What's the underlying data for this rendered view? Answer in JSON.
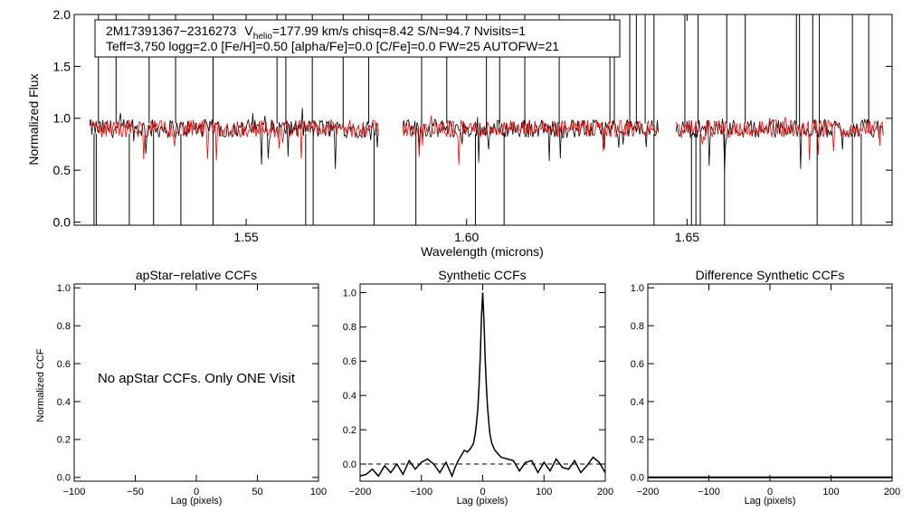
{
  "chart_data": [
    {
      "id": "spectrum",
      "type": "line",
      "title": "",
      "xlabel": "Wavelength (microns)",
      "ylabel": "Normalized Flux",
      "xlim": [
        1.511,
        1.6965
      ],
      "ylim": [
        -0.03,
        2.0
      ],
      "xticks": [
        1.55,
        1.6,
        1.65
      ],
      "xtick_labels": [
        "1.55",
        "1.60",
        "1.65"
      ],
      "yticks": [
        0.0,
        0.5,
        1.0,
        1.5,
        2.0
      ],
      "ytick_labels": [
        "0.0",
        "0.5",
        "1.0",
        "1.5",
        "2.0"
      ],
      "annotation": {
        "line1_id": "2M17391367−2316273",
        "line1_v": "V",
        "line1_v_sub": "helio",
        "line1_rest": "=177.99 km/s  chisq=8.42  S/N=94.7  Nvisits=1",
        "line2": "Teff=3,750 logg=2.0 [Fe/H]=0.50 [alpha/Fe]=0.0 [C/Fe]=0.0 FW=25 AUTOFW=21"
      },
      "chip_ranges": [
        [
          1.5145,
          1.58
        ],
        [
          1.5855,
          1.6435
        ],
        [
          1.6475,
          1.6945
        ]
      ],
      "series": [
        {
          "name": "observed",
          "color": "#000000",
          "level": 0.9,
          "noise": 0.09
        },
        {
          "name": "synthetic",
          "color": "#ff0000",
          "level": 0.9,
          "noise": 0.085
        }
      ],
      "spikes_up": [
        1.5165,
        1.5205,
        1.528,
        1.534,
        1.5425,
        1.557,
        1.559,
        1.565,
        1.572,
        1.5778,
        1.5898,
        1.5955,
        1.6045,
        1.6075,
        1.6132,
        1.621,
        1.6325,
        1.6335,
        1.637,
        1.6385,
        1.6405,
        1.6425,
        1.6495,
        1.6525,
        1.659,
        1.6632,
        1.6748,
        1.6755,
        1.6785,
        1.68,
        1.6875,
        1.6912
      ],
      "spikes_down": [
        1.5155,
        1.516,
        1.5235,
        1.529,
        1.5352,
        1.5425,
        1.5635,
        1.5652,
        1.579,
        1.5885,
        1.602,
        1.6085,
        1.6425,
        1.651,
        1.652,
        1.653,
        1.6585,
        1.6795,
        1.6875,
        1.6895
      ]
    },
    {
      "id": "apstar-ccf",
      "type": "line",
      "title": "apStar−relative CCFs",
      "xlabel": "Lag (pixels)",
      "ylabel": "Normalized CCF",
      "xlim": [
        -100,
        100
      ],
      "ylim": [
        -0.02,
        1.02
      ],
      "xticks": [
        -100,
        -50,
        0,
        50,
        100
      ],
      "xtick_labels": [
        "−100",
        "−50",
        "0",
        "50",
        "100"
      ],
      "yticks": [
        0.0,
        0.2,
        0.4,
        0.6,
        0.8,
        1.0
      ],
      "ytick_labels": [
        "0.0",
        "0.2",
        "0.4",
        "0.6",
        "0.8",
        "1.0"
      ],
      "message": "No apStar CCFs.  Only ONE Visit"
    },
    {
      "id": "synthetic-ccf",
      "type": "line",
      "title": "Synthetic CCFs",
      "xlabel": "Lag (pixels)",
      "ylabel": "",
      "xlim": [
        -200,
        200
      ],
      "ylim": [
        -0.1,
        1.05
      ],
      "xticks": [
        -200,
        -100,
        0,
        100,
        200
      ],
      "xtick_labels": [
        "−200",
        "−100",
        "0",
        "100",
        "200"
      ],
      "yticks": [
        0.0,
        0.2,
        0.4,
        0.6,
        0.8,
        1.0
      ],
      "ytick_labels": [
        "0.0",
        "0.2",
        "0.4",
        "0.6",
        "0.8",
        "1.0"
      ],
      "baseline": 0.0,
      "peak_lag": 0,
      "peak_value": 1.0,
      "x": [
        -200,
        -190,
        -180,
        -170,
        -160,
        -150,
        -140,
        -130,
        -120,
        -110,
        -100,
        -90,
        -80,
        -70,
        -60,
        -50,
        -45,
        -40,
        -35,
        -30,
        -25,
        -20,
        -15,
        -12,
        -10,
        -8,
        -6,
        -4,
        -2,
        0,
        2,
        4,
        6,
        8,
        10,
        12,
        15,
        20,
        25,
        30,
        40,
        50,
        60,
        70,
        80,
        90,
        100,
        110,
        120,
        130,
        140,
        150,
        160,
        170,
        180,
        190,
        200
      ],
      "y": [
        -0.07,
        -0.06,
        -0.03,
        -0.07,
        -0.01,
        -0.05,
        0.0,
        -0.06,
        0.02,
        -0.03,
        0.01,
        0.03,
        0.0,
        -0.05,
        0.01,
        -0.07,
        -0.02,
        0.02,
        0.05,
        0.08,
        0.07,
        0.09,
        0.12,
        0.18,
        0.24,
        0.32,
        0.45,
        0.62,
        0.85,
        1.0,
        0.84,
        0.62,
        0.45,
        0.33,
        0.24,
        0.17,
        0.12,
        0.08,
        0.06,
        0.04,
        0.03,
        0.02,
        -0.04,
        0.01,
        0.02,
        -0.05,
        0.01,
        -0.04,
        0.03,
        -0.02,
        -0.03,
        0.02,
        -0.05,
        -0.01,
        0.04,
        0.01,
        -0.05
      ]
    },
    {
      "id": "difference-ccf",
      "type": "line",
      "title": "Difference Synthetic CCFs",
      "xlabel": "Lag (pixels)",
      "ylabel": "",
      "xlim": [
        -200,
        200
      ],
      "ylim": [
        -0.02,
        1.02
      ],
      "xticks": [
        -200,
        -100,
        0,
        100,
        200
      ],
      "xtick_labels": [
        "−200",
        "−100",
        "0",
        "100",
        "200"
      ],
      "yticks": [
        0.0,
        0.2,
        0.4,
        0.6,
        0.8,
        1.0
      ],
      "ytick_labels": [
        "0.0",
        "0.2",
        "0.4",
        "0.6",
        "0.8",
        "1.0"
      ],
      "x": [
        -200,
        200
      ],
      "y": [
        0.0,
        0.0
      ]
    }
  ]
}
